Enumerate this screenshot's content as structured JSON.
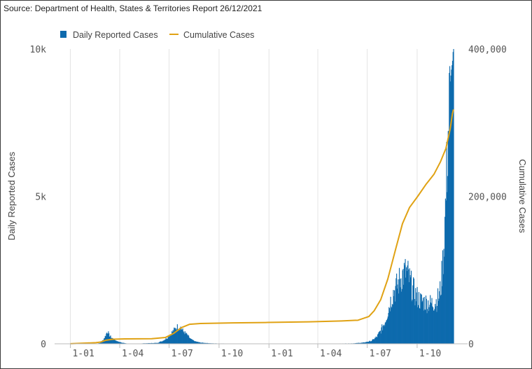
{
  "source": "Source: Department of Health, States & Territories Report 26/12/2021",
  "colors": {
    "bars": "#0d6aad",
    "line": "#e0a214",
    "grid": "#e4e4e4",
    "axis": "#bbbbbb"
  },
  "chart_data": {
    "type": "bar",
    "title": "",
    "legend_position": "top-left",
    "x_tick_labels": [
      "1-01",
      "1-04",
      "1-07",
      "1-10",
      "1-01",
      "1-04",
      "1-07",
      "1-10"
    ],
    "x_ticks": [
      {
        "label": "1-01",
        "day": 0
      },
      {
        "label": "1-04",
        "day": 91
      },
      {
        "label": "1-07",
        "day": 182
      },
      {
        "label": "1-10",
        "day": 274
      },
      {
        "label": "1-01",
        "day": 366
      },
      {
        "label": "1-04",
        "day": 456
      },
      {
        "label": "1-07",
        "day": 547
      },
      {
        "label": "1-10",
        "day": 639
      }
    ],
    "x_range_days": [
      -29,
      732
    ],
    "y_left": {
      "label": "Daily Reported Cases",
      "range": [
        0,
        10000
      ],
      "tick_labels": [
        "0",
        "5k",
        "10k"
      ],
      "tick_values": [
        0,
        5000,
        10000
      ]
    },
    "y_right": {
      "label": "Cumulative Cases",
      "range": [
        0,
        400000
      ],
      "tick_labels": [
        "0",
        "200,000",
        "400,000"
      ],
      "tick_values": [
        0,
        200000,
        400000
      ]
    },
    "grid": true,
    "series": [
      {
        "name": "Daily Reported Cases",
        "type": "bar",
        "axis": "left",
        "points": [
          [
            47,
            0
          ],
          [
            55,
            30
          ],
          [
            60,
            120
          ],
          [
            64,
            250
          ],
          [
            67,
            380
          ],
          [
            69,
            420
          ],
          [
            71,
            300
          ],
          [
            75,
            220
          ],
          [
            80,
            150
          ],
          [
            86,
            90
          ],
          [
            94,
            40
          ],
          [
            105,
            10
          ],
          [
            125,
            10
          ],
          [
            160,
            30
          ],
          [
            170,
            100
          ],
          [
            178,
            200
          ],
          [
            184,
            320
          ],
          [
            190,
            450
          ],
          [
            195,
            550
          ],
          [
            199,
            600
          ],
          [
            203,
            560
          ],
          [
            208,
            420
          ],
          [
            215,
            300
          ],
          [
            222,
            150
          ],
          [
            230,
            80
          ],
          [
            240,
            40
          ],
          [
            260,
            15
          ],
          [
            290,
            10
          ],
          [
            330,
            8
          ],
          [
            400,
            5
          ],
          [
            470,
            5
          ],
          [
            520,
            15
          ],
          [
            540,
            40
          ],
          [
            555,
            100
          ],
          [
            565,
            250
          ],
          [
            573,
            500
          ],
          [
            580,
            800
          ],
          [
            585,
            1150
          ],
          [
            590,
            1500
          ],
          [
            595,
            1800
          ],
          [
            600,
            1950
          ],
          [
            605,
            2150
          ],
          [
            610,
            2350
          ],
          [
            614,
            2450
          ],
          [
            618,
            2500
          ],
          [
            622,
            2400
          ],
          [
            626,
            2150
          ],
          [
            630,
            1950
          ],
          [
            636,
            1700
          ],
          [
            645,
            1500
          ],
          [
            655,
            1450
          ],
          [
            665,
            1400
          ],
          [
            675,
            1500
          ],
          [
            680,
            1700
          ],
          [
            683,
            2100
          ],
          [
            686,
            2800
          ],
          [
            689,
            3800
          ],
          [
            692,
            5200
          ],
          [
            695,
            7000
          ],
          [
            698,
            8200
          ],
          [
            700,
            8900
          ],
          [
            702,
            9300
          ],
          [
            704,
            9600
          ],
          [
            705,
            9900
          ],
          [
            706,
            10200
          ]
        ],
        "total_bar_heights_at": "interpolated daily"
      },
      {
        "name": "Cumulative Cases",
        "type": "line",
        "axis": "right",
        "points": [
          [
            0,
            100
          ],
          [
            47,
            1500
          ],
          [
            55,
            2200
          ],
          [
            65,
            4700
          ],
          [
            78,
            6200
          ],
          [
            100,
            6600
          ],
          [
            150,
            6900
          ],
          [
            175,
            8500
          ],
          [
            190,
            14000
          ],
          [
            205,
            22000
          ],
          [
            220,
            26500
          ],
          [
            240,
            27500
          ],
          [
            300,
            28400
          ],
          [
            360,
            28900
          ],
          [
            440,
            29800
          ],
          [
            500,
            31000
          ],
          [
            530,
            32000
          ],
          [
            550,
            37000
          ],
          [
            560,
            45000
          ],
          [
            572,
            60000
          ],
          [
            585,
            88000
          ],
          [
            600,
            130000
          ],
          [
            612,
            163000
          ],
          [
            625,
            185000
          ],
          [
            640,
            200000
          ],
          [
            655,
            216000
          ],
          [
            670,
            230000
          ],
          [
            682,
            247000
          ],
          [
            692,
            265000
          ],
          [
            700,
            292000
          ],
          [
            704,
            312000
          ],
          [
            706,
            318000
          ]
        ]
      }
    ]
  }
}
